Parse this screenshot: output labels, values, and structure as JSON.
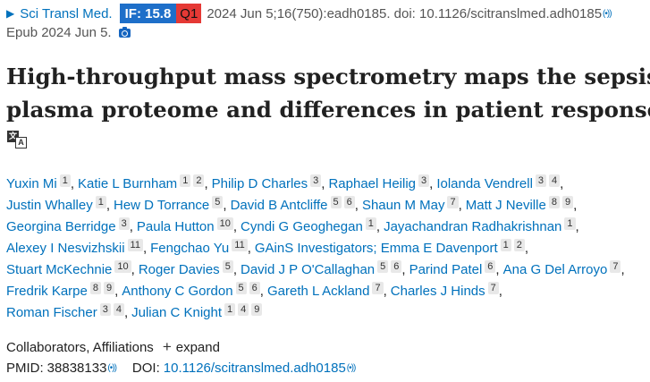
{
  "citation": {
    "expand_glyph": "▶",
    "journal": "Sci Transl Med.",
    "impact_factor": "IF: 15.8",
    "quartile": "Q1",
    "details": "2024 Jun 5;16(750):eadh0185. doi: 10.1126/scitranslmed.adh0185",
    "signal_glyph": "(•))"
  },
  "epub": {
    "text": "Epub 2024 Jun 5."
  },
  "title": {
    "line1": "High-throughput mass spectrometry maps the sepsis",
    "line2": "plasma proteome and differences in patient response"
  },
  "translate_icon": {
    "a": "文",
    "b": "A"
  },
  "authors": {
    "lines": [
      [
        {
          "name": "Yuxin Mi",
          "affs": [
            "1"
          ]
        },
        {
          "name": "Katie L Burnham",
          "affs": [
            "1",
            "2"
          ]
        },
        {
          "name": "Philip D Charles",
          "affs": [
            "3"
          ]
        },
        {
          "name": "Raphael Heilig",
          "affs": [
            "3"
          ]
        },
        {
          "name": "Iolanda Vendrell",
          "affs": [
            "3",
            "4"
          ]
        }
      ],
      [
        {
          "name": "Justin Whalley",
          "affs": [
            "1"
          ]
        },
        {
          "name": "Hew D Torrance",
          "affs": [
            "5"
          ]
        },
        {
          "name": "David B Antcliffe",
          "affs": [
            "5",
            "6"
          ]
        },
        {
          "name": "Shaun M May",
          "affs": [
            "7"
          ]
        },
        {
          "name": "Matt J Neville",
          "affs": [
            "8",
            "9"
          ]
        }
      ],
      [
        {
          "name": "Georgina Berridge",
          "affs": [
            "3"
          ]
        },
        {
          "name": "Paula Hutton",
          "affs": [
            "10"
          ]
        },
        {
          "name": "Cyndi G Geoghegan",
          "affs": [
            "1"
          ]
        },
        {
          "name": "Jayachandran Radhakrishnan",
          "affs": [
            "1"
          ]
        }
      ],
      [
        {
          "name": "Alexey I Nesvizhskii",
          "affs": [
            "11"
          ]
        },
        {
          "name": "Fengchao Yu",
          "affs": [
            "11"
          ]
        },
        {
          "name": "GAinS Investigators; Emma E Davenport",
          "affs": [
            "1",
            "2"
          ]
        }
      ],
      [
        {
          "name": "Stuart McKechnie",
          "affs": [
            "10"
          ]
        },
        {
          "name": "Roger Davies",
          "affs": [
            "5"
          ]
        },
        {
          "name": "David J P O'Callaghan",
          "affs": [
            "5",
            "6"
          ]
        },
        {
          "name": "Parind Patel",
          "affs": [
            "6"
          ]
        },
        {
          "name": "Ana G Del Arroyo",
          "affs": [
            "7"
          ]
        }
      ],
      [
        {
          "name": "Fredrik Karpe",
          "affs": [
            "8",
            "9"
          ]
        },
        {
          "name": "Anthony C Gordon",
          "affs": [
            "5",
            "6"
          ]
        },
        {
          "name": "Gareth L Ackland",
          "affs": [
            "7"
          ]
        },
        {
          "name": "Charles J Hinds",
          "affs": [
            "7"
          ]
        }
      ],
      [
        {
          "name": "Roman Fischer",
          "affs": [
            "3",
            "4"
          ]
        },
        {
          "name": "Julian C Knight",
          "affs": [
            "1",
            "4",
            "9"
          ]
        }
      ]
    ]
  },
  "collaborators": {
    "label": "Collaborators, Affiliations",
    "plus_glyph": "+",
    "expand": "expand"
  },
  "ids": {
    "pmid_label": "PMID:",
    "pmid": "38838133",
    "doi_label": "DOI:",
    "doi": "10.1126/scitranslmed.adh0185",
    "signal_glyph": "(•))"
  }
}
